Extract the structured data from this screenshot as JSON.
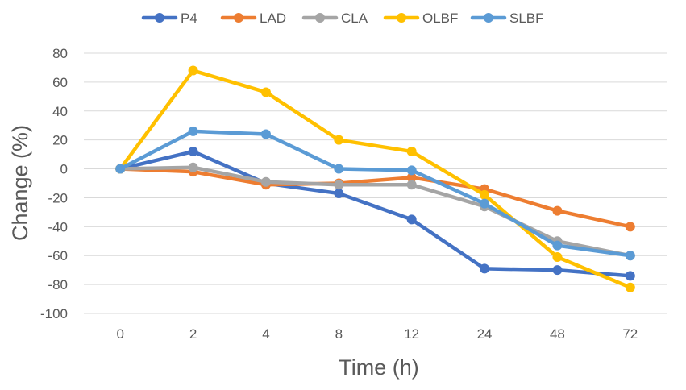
{
  "chart_data": {
    "type": "line",
    "title": "",
    "xlabel": "Time (h)",
    "ylabel": "Change (%)",
    "categories": [
      "0",
      "2",
      "4",
      "8",
      "12",
      "24",
      "48",
      "72"
    ],
    "ylim": [
      -100,
      80
    ],
    "yticks": [
      80,
      60,
      40,
      20,
      0,
      -20,
      -40,
      -60,
      -80,
      -100
    ],
    "grid": true,
    "legend_position": "top",
    "series": [
      {
        "name": "P4",
        "color": "#4472C4",
        "values": [
          0,
          12,
          -10,
          -17,
          -35,
          -69,
          -70,
          -74
        ]
      },
      {
        "name": "LAD",
        "color": "#ED7D31",
        "values": [
          0,
          -2,
          -11,
          -10,
          -6,
          -14,
          -29,
          -40
        ]
      },
      {
        "name": "CLA",
        "color": "#A5A5A5",
        "values": [
          0,
          1,
          -9,
          -11,
          -11,
          -26,
          -50,
          -60
        ]
      },
      {
        "name": "OLBF",
        "color": "#FFC000",
        "values": [
          0,
          68,
          53,
          20,
          12,
          -18,
          -61,
          -82
        ]
      },
      {
        "name": "SLBF",
        "color": "#5B9BD5",
        "values": [
          0,
          26,
          24,
          0,
          -1,
          -24,
          -53,
          -60
        ]
      }
    ]
  }
}
